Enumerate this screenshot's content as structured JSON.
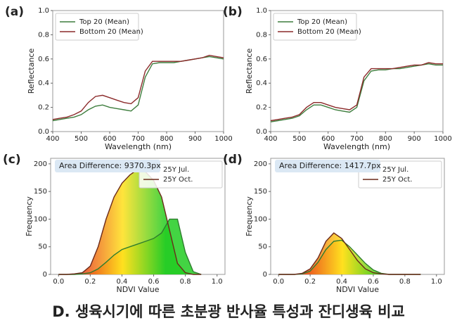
{
  "caption": "D. 생육시기에 따른 초분광 반사율 특성과 잔디생육 비교",
  "chart_data": [
    {
      "type": "line",
      "label": "(a)",
      "xlabel": "Wavelength (nm)",
      "ylabel": "Reflectance",
      "xlim": [
        400,
        1000
      ],
      "ylim": [
        0,
        1
      ],
      "xticks": [
        400,
        500,
        600,
        700,
        800,
        900,
        1000
      ],
      "yticks": [
        {
          "value": 0,
          "label": "0.0"
        },
        0.2,
        0.4,
        0.6,
        0.8,
        {
          "value": 1,
          "label": "1.0"
        }
      ],
      "legend": "upper left",
      "fill_gradient": false,
      "x": [
        400,
        425,
        450,
        475,
        500,
        525,
        550,
        575,
        600,
        625,
        650,
        675,
        700,
        725,
        750,
        775,
        800,
        825,
        850,
        875,
        900,
        925,
        950,
        975,
        1000
      ],
      "series": [
        {
          "name": "Top 20 (Mean)",
          "color": "#3d7d3d",
          "values": [
            0.09,
            0.1,
            0.11,
            0.12,
            0.14,
            0.18,
            0.21,
            0.22,
            0.2,
            0.19,
            0.18,
            0.17,
            0.22,
            0.45,
            0.56,
            0.57,
            0.57,
            0.57,
            0.58,
            0.59,
            0.6,
            0.61,
            0.62,
            0.61,
            0.6
          ]
        },
        {
          "name": "Bottom 20 (Mean)",
          "color": "#8b2a2a",
          "values": [
            0.1,
            0.11,
            0.12,
            0.14,
            0.17,
            0.24,
            0.29,
            0.3,
            0.28,
            0.26,
            0.24,
            0.23,
            0.28,
            0.5,
            0.58,
            0.58,
            0.58,
            0.58,
            0.58,
            0.59,
            0.6,
            0.61,
            0.63,
            0.62,
            0.61
          ]
        }
      ]
    },
    {
      "type": "line",
      "label": "(b)",
      "xlabel": "Wavelength (nm)",
      "ylabel": "Reflectance",
      "xlim": [
        400,
        1000
      ],
      "ylim": [
        0,
        1
      ],
      "xticks": [
        400,
        500,
        600,
        700,
        800,
        900,
        1000
      ],
      "yticks": [
        {
          "value": 0,
          "label": "0.0"
        },
        0.2,
        0.4,
        0.6,
        0.8,
        {
          "value": 1,
          "label": "1.0"
        }
      ],
      "legend": "upper left",
      "fill_gradient": false,
      "x": [
        400,
        425,
        450,
        475,
        500,
        525,
        550,
        575,
        600,
        625,
        650,
        675,
        700,
        725,
        750,
        775,
        800,
        825,
        850,
        875,
        900,
        925,
        950,
        975,
        1000
      ],
      "series": [
        {
          "name": "Top 20 (Mean)",
          "color": "#3d7d3d",
          "values": [
            0.08,
            0.09,
            0.1,
            0.11,
            0.13,
            0.18,
            0.22,
            0.22,
            0.2,
            0.18,
            0.17,
            0.16,
            0.2,
            0.42,
            0.5,
            0.51,
            0.51,
            0.52,
            0.52,
            0.53,
            0.54,
            0.55,
            0.56,
            0.55,
            0.55
          ]
        },
        {
          "name": "Bottom 20 (Mean)",
          "color": "#8b2a2a",
          "values": [
            0.09,
            0.1,
            0.11,
            0.12,
            0.14,
            0.2,
            0.24,
            0.24,
            0.22,
            0.2,
            0.19,
            0.18,
            0.22,
            0.45,
            0.52,
            0.52,
            0.52,
            0.52,
            0.53,
            0.54,
            0.55,
            0.55,
            0.57,
            0.56,
            0.56
          ]
        }
      ]
    },
    {
      "type": "line",
      "label": "(c)",
      "xlabel": "NDVI Value",
      "ylabel": "Frequency",
      "annotation": "Area Difference: 9370.3px",
      "xlim": [
        -0.05,
        1.05
      ],
      "ylim": [
        0,
        210
      ],
      "xticks": [
        {
          "value": 0,
          "label": "0.0"
        },
        0.2,
        0.4,
        0.6,
        0.8,
        {
          "value": 1,
          "label": "1.0"
        }
      ],
      "yticks": [
        0,
        50,
        100,
        150,
        200
      ],
      "legend": "upper right",
      "fill_gradient": true,
      "x": [
        0,
        0.05,
        0.1,
        0.15,
        0.2,
        0.25,
        0.3,
        0.35,
        0.4,
        0.45,
        0.5,
        0.55,
        0.6,
        0.65,
        0.7,
        0.75,
        0.8,
        0.85,
        0.9
      ],
      "series": [
        {
          "name": "25Y Jul.",
          "color": "#2e7d2e",
          "values": [
            0,
            0,
            0,
            1,
            3,
            10,
            22,
            35,
            45,
            50,
            55,
            60,
            65,
            75,
            100,
            100,
            40,
            5,
            0
          ]
        },
        {
          "name": "25Y Oct.",
          "color": "#6b2a1a",
          "values": [
            0,
            0,
            1,
            3,
            15,
            50,
            100,
            140,
            165,
            180,
            190,
            185,
            170,
            140,
            80,
            20,
            3,
            0,
            0
          ]
        }
      ]
    },
    {
      "type": "line",
      "label": "(d)",
      "xlabel": "NDVI Value",
      "ylabel": "Frequency",
      "annotation": "Area Difference: 1417.7px",
      "xlim": [
        -0.05,
        1.05
      ],
      "ylim": [
        0,
        210
      ],
      "xticks": [
        {
          "value": 0,
          "label": "0.0"
        },
        0.2,
        0.4,
        0.6,
        0.8,
        {
          "value": 1,
          "label": "1.0"
        }
      ],
      "yticks": [
        0,
        50,
        100,
        150,
        200
      ],
      "legend": "upper right",
      "fill_gradient": true,
      "x": [
        0,
        0.05,
        0.1,
        0.15,
        0.2,
        0.25,
        0.3,
        0.35,
        0.4,
        0.45,
        0.5,
        0.55,
        0.6,
        0.65,
        0.7,
        0.75,
        0.8,
        0.85,
        0.9
      ],
      "series": [
        {
          "name": "25Y Jul.",
          "color": "#2e7d2e",
          "values": [
            0,
            0,
            0,
            1,
            6,
            22,
            45,
            60,
            62,
            50,
            35,
            20,
            8,
            2,
            0,
            0,
            0,
            0,
            0
          ]
        },
        {
          "name": "25Y Oct.",
          "color": "#6b2a1a",
          "values": [
            0,
            0,
            0,
            2,
            10,
            30,
            60,
            75,
            65,
            45,
            25,
            10,
            3,
            1,
            0,
            0,
            0,
            0,
            0
          ]
        }
      ]
    }
  ]
}
